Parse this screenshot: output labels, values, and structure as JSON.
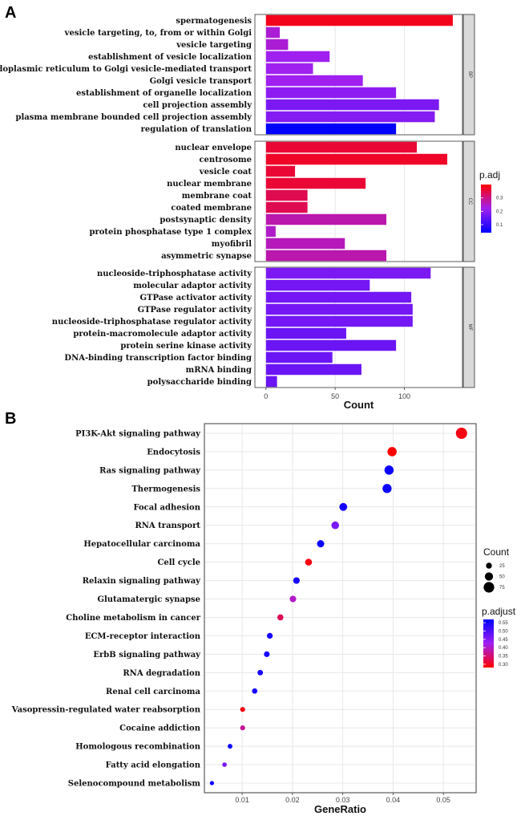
{
  "panels": {
    "a": "A",
    "b": "B"
  },
  "chart_data": [
    {
      "type": "bar",
      "orientation": "horizontal",
      "xlabel": "Count",
      "xlim": [
        -8,
        142
      ],
      "xticks": [
        0,
        50,
        100
      ],
      "facets": [
        {
          "strip": "BP",
          "categories": [
            "spermatogenesis",
            "vesicle targeting, to, from or within Golgi",
            "vesicle targeting",
            "establishment of vesicle localization",
            "endoplasmic reticulum to Golgi vesicle-mediated transport",
            "Golgi vesicle transport",
            "establishment of organelle localization",
            "cell projection assembly",
            "plasma membrane bounded cell projection assembly",
            "regulation of translation"
          ],
          "values": [
            135,
            10,
            16,
            46,
            34,
            70,
            94,
            125,
            122,
            94
          ],
          "p_adj": [
            0.06,
            0.2,
            0.2,
            0.22,
            0.22,
            0.22,
            0.24,
            0.26,
            0.25,
            0.4
          ]
        },
        {
          "strip": "CC",
          "categories": [
            "nuclear envelope",
            "centrosome",
            "vesicle coat",
            "nuclear membrane",
            "membrane coat",
            "coated membrane",
            "postsynaptic density",
            "protein phosphatase type 1 complex",
            "myofibril",
            "asymmetric synapse"
          ],
          "values": [
            109,
            131,
            21,
            72,
            30,
            30,
            87,
            7,
            57,
            87
          ],
          "p_adj": [
            0.08,
            0.07,
            0.08,
            0.08,
            0.1,
            0.1,
            0.17,
            0.19,
            0.18,
            0.17
          ]
        },
        {
          "strip": "MF",
          "categories": [
            "nucleoside-triphosphatase activity",
            "molecular adaptor activity",
            "GTPase activator activity",
            "GTPase regulator activity",
            "nucleoside-triphosphatase regulator activity",
            "protein-macromolecule adaptor activity",
            "protein serine kinase activity",
            "DNA-binding transcription factor binding",
            "mRNA binding",
            "polysaccharide binding"
          ],
          "values": [
            119,
            75,
            105,
            106,
            106,
            58,
            94,
            48,
            69,
            8
          ],
          "p_adj": [
            0.26,
            0.27,
            0.27,
            0.27,
            0.27,
            0.28,
            0.28,
            0.28,
            0.28,
            0.28
          ]
        }
      ],
      "legend": {
        "title": "p.adj",
        "ticks": [
          0.1,
          0.2,
          0.3
        ],
        "range": [
          0.04,
          0.4
        ],
        "position": "right"
      }
    },
    {
      "type": "scatter",
      "xlabel": "GeneRatio",
      "xlim": [
        0.0025,
        0.0565
      ],
      "xticks": [
        0.01,
        0.02,
        0.03,
        0.04,
        0.05
      ],
      "tick_labels": [
        "0.01",
        "0.02",
        "0.03",
        "0.04",
        "0.05"
      ],
      "categories": [
        "PI3K-Akt signaling pathway",
        "Endocytosis",
        "Ras signaling pathway",
        "Thermogenesis",
        "Focal adhesion",
        "RNA transport",
        "Hepatocellular carcinoma",
        "Cell cycle",
        "Relaxin signaling pathway",
        "Glutamatergic synapse",
        "Choline metabolism in cancer",
        "ECM-receptor interaction",
        "ErbB signaling pathway",
        "RNA degradation",
        "Renal cell carcinoma",
        "Vasopressin-regulated water reabsorption",
        "Cocaine addiction",
        "Homologous recombination",
        "Fatty acid elongation",
        "Selenocompound metabolism"
      ],
      "gene_ratio": [
        0.0536,
        0.0398,
        0.0392,
        0.0388,
        0.0301,
        0.0285,
        0.0256,
        0.0232,
        0.0208,
        0.0201,
        0.0176,
        0.0155,
        0.0149,
        0.0136,
        0.0125,
        0.0101,
        0.0101,
        0.0076,
        0.0065,
        0.004
      ],
      "count": [
        82,
        61,
        60,
        59,
        46,
        44,
        39,
        35,
        32,
        31,
        27,
        24,
        23,
        21,
        19,
        15,
        15,
        12,
        10,
        6
      ],
      "p_adjust": [
        0.29,
        0.28,
        0.56,
        0.56,
        0.55,
        0.46,
        0.56,
        0.29,
        0.55,
        0.4,
        0.33,
        0.55,
        0.55,
        0.55,
        0.55,
        0.29,
        0.37,
        0.56,
        0.46,
        0.56
      ],
      "size_legend": {
        "title": "Count",
        "ticks": [
          25,
          50,
          75
        ]
      },
      "color_legend": {
        "title": "p.adjust",
        "ticks": [
          0.3,
          0.35,
          0.4,
          0.45,
          0.5,
          0.55
        ],
        "range": [
          0.28,
          0.57
        ],
        "position": "right"
      }
    }
  ]
}
